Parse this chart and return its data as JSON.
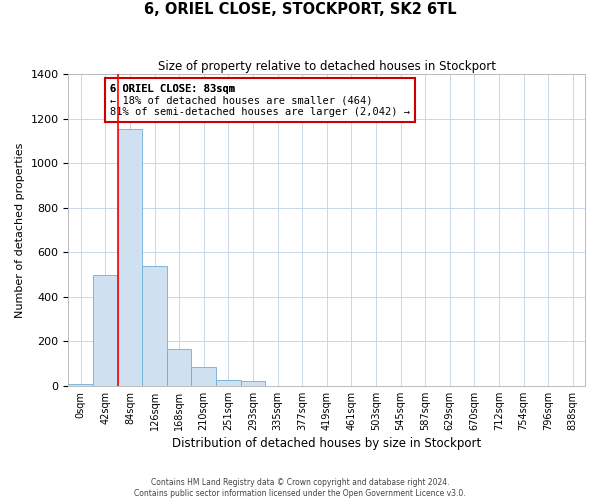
{
  "title": "6, ORIEL CLOSE, STOCKPORT, SK2 6TL",
  "subtitle": "Size of property relative to detached houses in Stockport",
  "xlabel": "Distribution of detached houses by size in Stockport",
  "ylabel": "Number of detached properties",
  "bar_values": [
    10,
    500,
    1155,
    540,
    165,
    85,
    28,
    20,
    0,
    0,
    0,
    0,
    0,
    0,
    0,
    0,
    0,
    0,
    0,
    0,
    0
  ],
  "bin_labels": [
    "0sqm",
    "42sqm",
    "84sqm",
    "126sqm",
    "168sqm",
    "210sqm",
    "251sqm",
    "293sqm",
    "335sqm",
    "377sqm",
    "419sqm",
    "461sqm",
    "503sqm",
    "545sqm",
    "587sqm",
    "629sqm",
    "670sqm",
    "712sqm",
    "754sqm",
    "796sqm",
    "838sqm"
  ],
  "bar_color": "#cfe0f0",
  "bar_edge_color": "#6baed6",
  "red_line_bin": 2,
  "ylim": [
    0,
    1400
  ],
  "yticks": [
    0,
    200,
    400,
    600,
    800,
    1000,
    1200,
    1400
  ],
  "annotation_title": "6 ORIEL CLOSE: 83sqm",
  "annotation_line1": "← 18% of detached houses are smaller (464)",
  "annotation_line2": "81% of semi-detached houses are larger (2,042) →",
  "annotation_box_color": "#ffffff",
  "annotation_box_edge": "#cc0000",
  "footer_line1": "Contains HM Land Registry data © Crown copyright and database right 2024.",
  "footer_line2": "Contains public sector information licensed under the Open Government Licence v3.0.",
  "background_color": "#ffffff",
  "grid_color": "#c8d8ea"
}
